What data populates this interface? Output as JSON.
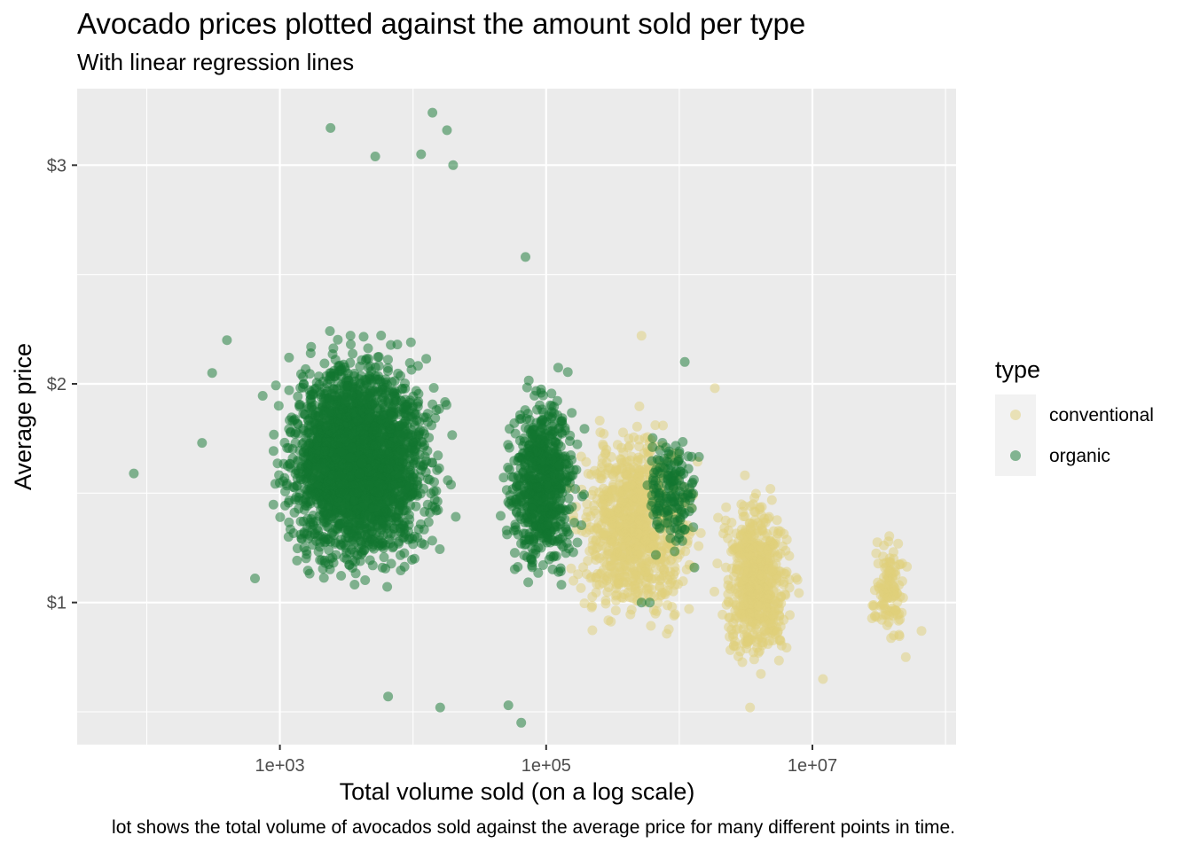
{
  "chart_data": {
    "type": "scatter",
    "title": "Avocado prices plotted against the amount sold per type",
    "subtitle": "With linear regression lines",
    "xlabel": "Total volume sold (on a log scale)",
    "ylabel": "Average price",
    "caption": "lot shows the total volume of avocados sold against the average price for many different points in time.",
    "x_scale": "log10",
    "xlim": [
      30,
      120000000
    ],
    "ylim": [
      0.35,
      3.35
    ],
    "x_ticks": [
      {
        "value": 1000,
        "label": "1e+03"
      },
      {
        "value": 100000,
        "label": "1e+05"
      },
      {
        "value": 10000000,
        "label": "1e+07"
      }
    ],
    "x_minor_ticks": [
      100,
      10000,
      1000000,
      100000000
    ],
    "y_ticks": [
      {
        "value": 1,
        "label": "$1"
      },
      {
        "value": 2,
        "label": "$2"
      },
      {
        "value": 3,
        "label": "$3"
      }
    ],
    "y_minor_ticks": [
      0.5,
      1.5,
      2.5
    ],
    "grid": true,
    "legend": {
      "title": "type",
      "position": "right",
      "entries": [
        {
          "label": "conventional",
          "color": "#e0d07a"
        },
        {
          "label": "organic",
          "color": "#127530"
        }
      ]
    },
    "panel_background": "#ebebeb",
    "point_alpha": 0.5,
    "series": [
      {
        "name": "conventional",
        "color": "#e0d07a",
        "clusters": [
          {
            "x_log_min": 4.9,
            "x_log_max": 6.45,
            "y_min": 0.55,
            "y_max": 2.2,
            "y_center": 1.35,
            "count": 900
          },
          {
            "x_log_min": 6.1,
            "x_log_max": 7.05,
            "y_min": 0.45,
            "y_max": 1.95,
            "y_center": 1.1,
            "count": 600
          },
          {
            "x_log_min": 7.35,
            "x_log_max": 7.8,
            "y_min": 0.75,
            "y_max": 1.65,
            "y_center": 1.05,
            "count": 120
          }
        ],
        "points": [
          {
            "x": 520000,
            "y": 2.22
          },
          {
            "x": 1850000,
            "y": 1.98
          },
          {
            "x": 3400000,
            "y": 0.52
          },
          {
            "x": 12000000,
            "y": 0.65
          },
          {
            "x": 66000000,
            "y": 0.87
          }
        ]
      },
      {
        "name": "organic",
        "color": "#127530",
        "clusters": [
          {
            "x_log_min": 2.6,
            "x_log_max": 4.6,
            "y_min": 0.85,
            "y_max": 2.7,
            "y_center": 1.65,
            "count": 2600
          },
          {
            "x_log_min": 4.5,
            "x_log_max": 5.45,
            "y_min": 0.85,
            "y_max": 2.4,
            "y_center": 1.55,
            "count": 700
          },
          {
            "x_log_min": 5.6,
            "x_log_max": 6.3,
            "y_min": 1.1,
            "y_max": 2.05,
            "y_center": 1.5,
            "count": 160
          }
        ],
        "points": [
          {
            "x": 80,
            "y": 1.59
          },
          {
            "x": 650,
            "y": 1.11
          },
          {
            "x": 2400,
            "y": 3.17
          },
          {
            "x": 14000,
            "y": 3.24
          },
          {
            "x": 18000,
            "y": 3.16
          },
          {
            "x": 5200,
            "y": 3.04
          },
          {
            "x": 11500,
            "y": 3.05
          },
          {
            "x": 20000,
            "y": 3.0
          },
          {
            "x": 400,
            "y": 2.2
          },
          {
            "x": 310,
            "y": 2.05
          },
          {
            "x": 260,
            "y": 1.73
          },
          {
            "x": 6500,
            "y": 0.57
          },
          {
            "x": 16000,
            "y": 0.52
          },
          {
            "x": 52000,
            "y": 0.53
          },
          {
            "x": 65000,
            "y": 0.45
          },
          {
            "x": 70000,
            "y": 2.58
          },
          {
            "x": 1100000,
            "y": 2.1
          },
          {
            "x": 1300000,
            "y": 1.16
          },
          {
            "x": 600000,
            "y": 1.0
          },
          {
            "x": 520000,
            "y": 1.0
          }
        ]
      }
    ]
  }
}
